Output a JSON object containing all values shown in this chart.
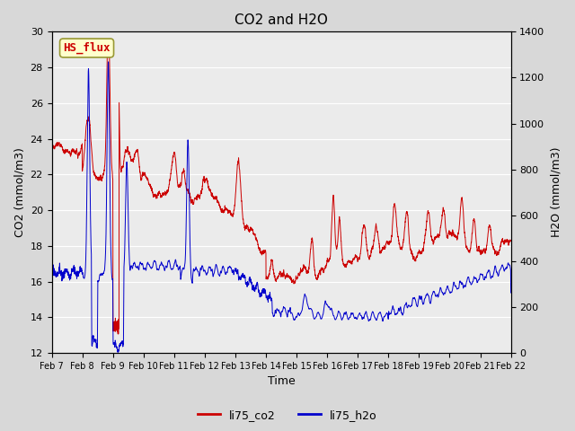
{
  "title": "CO2 and H2O",
  "xlabel": "Time",
  "ylabel_left": "CO2 (mmol/m3)",
  "ylabel_right": "H2O (mmol/m3)",
  "ylim_left": [
    12,
    30
  ],
  "ylim_right": [
    0,
    1400
  ],
  "yticks_left": [
    12,
    14,
    16,
    18,
    20,
    22,
    24,
    26,
    28,
    30
  ],
  "yticks_right": [
    0,
    200,
    400,
    600,
    800,
    1000,
    1200,
    1400
  ],
  "xtick_labels": [
    "Feb 7",
    "Feb 8",
    "Feb 9",
    "Feb 10",
    "Feb 11",
    "Feb 12",
    "Feb 13",
    "Feb 14",
    "Feb 15",
    "Feb 16",
    "Feb 17",
    "Feb 18",
    "Feb 19",
    "Feb 20",
    "Feb 21",
    "Feb 22"
  ],
  "color_co2": "#cc0000",
  "color_h2o": "#0000cc",
  "legend_labels": [
    "li75_co2",
    "li75_h2o"
  ],
  "bg_color": "#d8d8d8",
  "plot_bg": "#ebebeb",
  "grid_color": "#ffffff",
  "annotation_text": "HS_flux",
  "annotation_color": "#cc0000",
  "annotation_bg": "#ffffcc",
  "annotation_border": "#999933"
}
